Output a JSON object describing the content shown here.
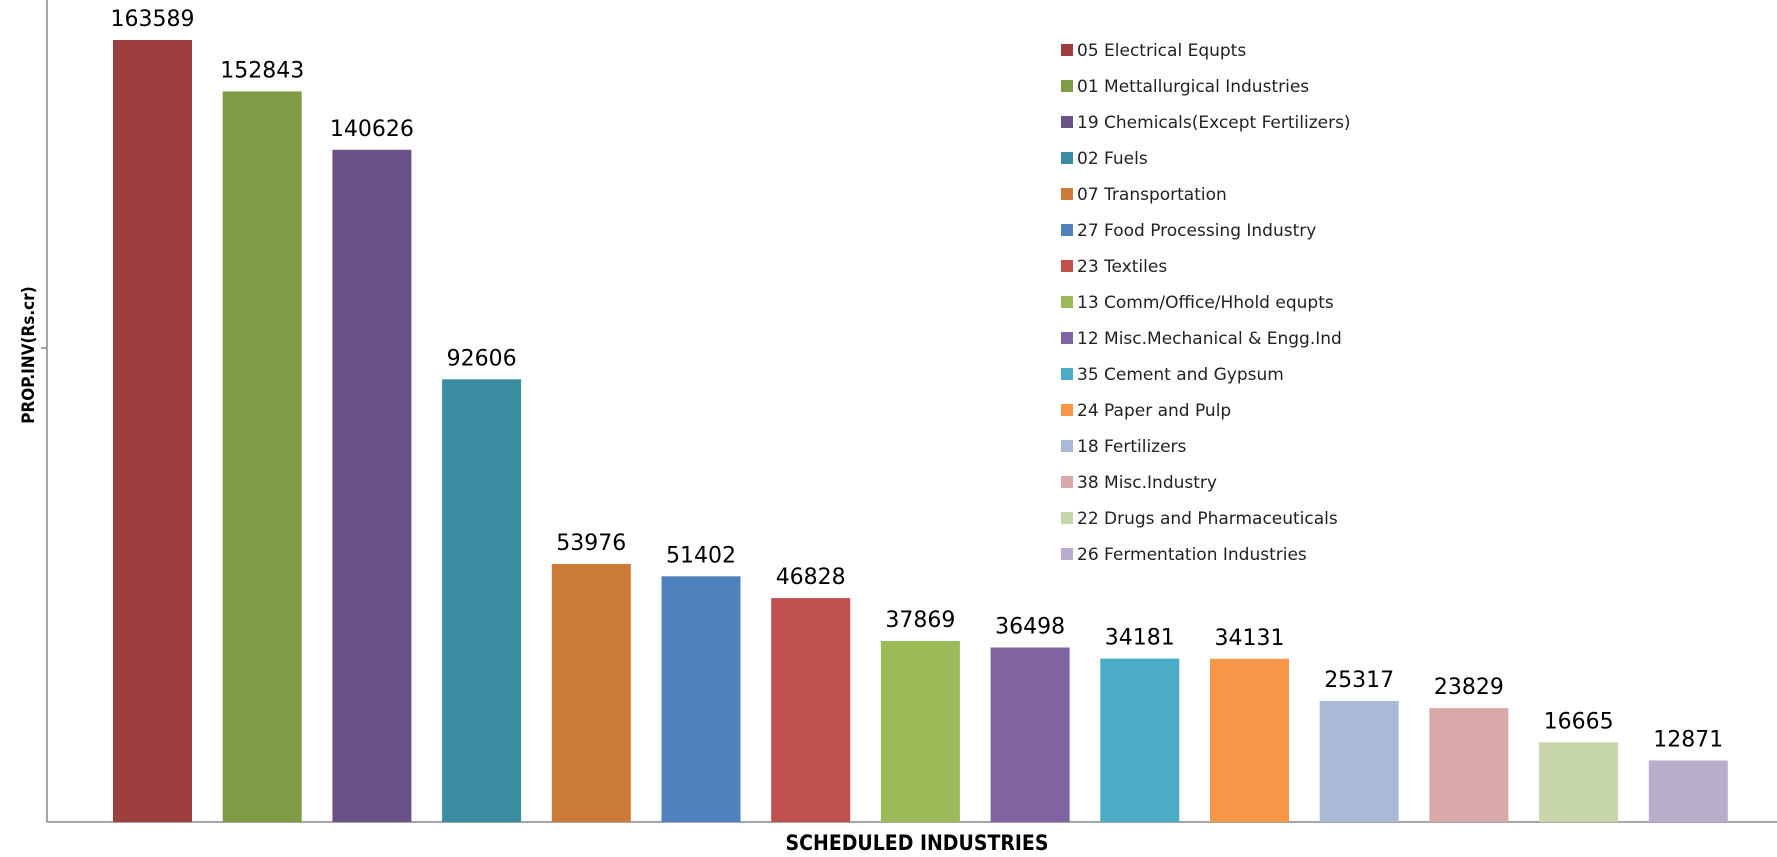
{
  "chart_data": {
    "type": "bar",
    "title": "",
    "xlabel": "SCHEDULED INDUSTRIES",
    "ylabel": "PROP.INV(Rs.cr)",
    "ylim": [
      0,
      180000
    ],
    "grid": false,
    "legend_position": "top-right",
    "categories": [
      "05 Electrical Equpts",
      "01 Mettallurgical Industries",
      "19 Chemicals(Except Fertilizers)",
      "02 Fuels",
      "07 Transportation",
      "27 Food Processing Industry",
      "23 Textiles",
      "13 Comm/Office/Hhold equpts",
      "12 Misc.Mechanical & Engg.Ind",
      "35 Cement and Gypsum",
      "24 Paper and Pulp",
      "18 Fertilizers",
      "38 Misc.Industry",
      "22 Drugs and Pharmaceuticals",
      "26 Fermentation Industries"
    ],
    "values": [
      163589,
      152843,
      140626,
      92606,
      53976,
      51402,
      46828,
      37869,
      36498,
      34181,
      34131,
      25317,
      23829,
      16665,
      12871
    ],
    "data_labels": [
      "163589",
      "152843",
      "140626",
      "92606",
      "53976",
      "51402",
      "46828",
      "37869",
      "36498",
      "34181",
      "34131",
      "25317",
      "23829",
      "16665",
      "12871"
    ],
    "colors": [
      "#9E3F3F",
      "#7F9B46",
      "#6A5288",
      "#3A8CA1",
      "#CC7B38",
      "#4F81BD",
      "#C0504D",
      "#9BBB59",
      "#8064A2",
      "#4BACC6",
      "#F79646",
      "#A9B9D6",
      "#D9A9A9",
      "#C6D6AA",
      "#B8AECB"
    ]
  }
}
